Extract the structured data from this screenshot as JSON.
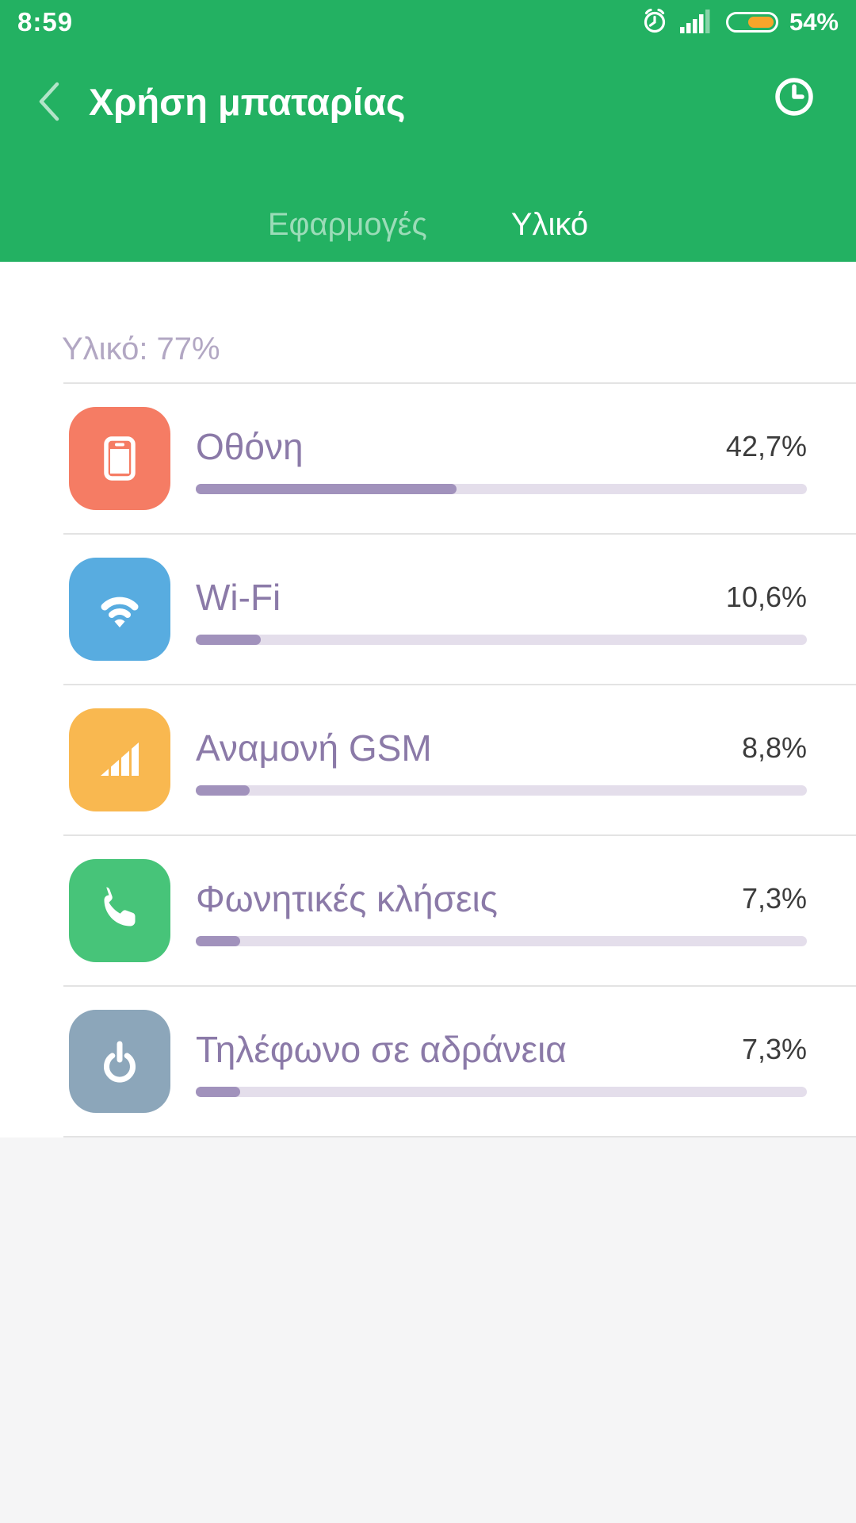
{
  "status_bar": {
    "time": "8:59",
    "battery_percent_label": "54%",
    "battery_level": 54,
    "battery_fill_color": "#f7a52a",
    "icons": [
      "alarm-icon",
      "signal-strength-icon",
      "battery-icon"
    ]
  },
  "header": {
    "title": "Χρήση μπαταρίας",
    "back_icon": "back-chevron-icon",
    "history_icon": "history-clock-icon",
    "background_color": "#23b162"
  },
  "tabs": [
    {
      "label": "Εφαρμογές",
      "active": false
    },
    {
      "label": "Υλικό",
      "active": true
    }
  ],
  "section": {
    "summary": "Υλικό: 77%"
  },
  "items": [
    {
      "name": "Οθόνη",
      "percent_label": "42,7%",
      "percent": 42.7,
      "icon": "screen-icon",
      "color": "#f57c64"
    },
    {
      "name": "Wi-Fi",
      "percent_label": "10,6%",
      "percent": 10.6,
      "icon": "wifi-icon",
      "color": "#58ace0"
    },
    {
      "name": "Αναμονή GSM",
      "percent_label": "8,8%",
      "percent": 8.8,
      "icon": "gsm-signal-icon",
      "color": "#f9b850"
    },
    {
      "name": "Φωνητικές κλήσεις",
      "percent_label": "7,3%",
      "percent": 7.3,
      "icon": "voice-call-icon",
      "color": "#47c479"
    },
    {
      "name": "Τηλέφωνο σε αδράνεια",
      "percent_label": "7,3%",
      "percent": 7.3,
      "icon": "power-idle-icon",
      "color": "#8ca6ba"
    }
  ],
  "colors": {
    "accent_green": "#23b162",
    "bar_track": "#e4deeb",
    "bar_fill": "#a192bc",
    "item_label": "#8b7aa8",
    "section_label": "#b2a7c3",
    "page_bottom": "#f5f5f6"
  }
}
